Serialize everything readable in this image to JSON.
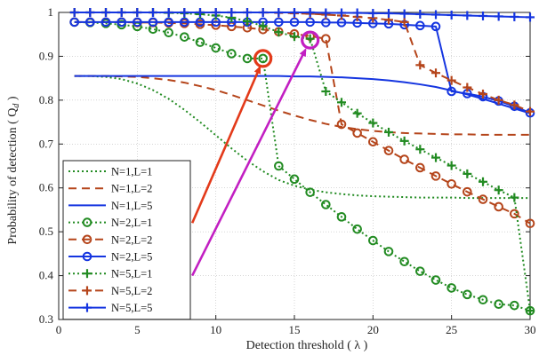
{
  "chart_data": {
    "type": "line",
    "xlabel": "Detection threshold ( λ )",
    "ylabel": "Probability of detection ( Q",
    "ylabel_sub": "d",
    "ylabel_end": " )",
    "xlim": [
      0,
      30
    ],
    "ylim": [
      0.3,
      1.0
    ],
    "xticks": [
      0,
      5,
      10,
      15,
      20,
      25,
      30
    ],
    "yticks": [
      0.3,
      0.4,
      0.5,
      0.6,
      0.7,
      0.8,
      0.9,
      1
    ],
    "grid": true,
    "legend_position": "bottom-left",
    "series": [
      {
        "name": "N=1,L=1",
        "color": "#228B22",
        "dash": "2,3",
        "marker": "none",
        "width": 2,
        "x": [
          1,
          2,
          3,
          4,
          5,
          6,
          7,
          8,
          9,
          10,
          11,
          12,
          13,
          14,
          15,
          16,
          17,
          18,
          19,
          20,
          21,
          22,
          23,
          24,
          25,
          26,
          27,
          28,
          29,
          30
        ],
        "y": [
          0.855,
          0.855,
          0.853,
          0.848,
          0.838,
          0.823,
          0.803,
          0.778,
          0.75,
          0.72,
          0.69,
          0.662,
          0.638,
          0.618,
          0.605,
          0.596,
          0.59,
          0.586,
          0.583,
          0.581,
          0.58,
          0.579,
          0.578,
          0.578,
          0.578,
          0.577,
          0.577,
          0.577,
          0.577,
          0.577
        ]
      },
      {
        "name": "N=1,L=2",
        "color": "#B5451B",
        "dash": "9,6",
        "marker": "none",
        "width": 2,
        "x": [
          1,
          2,
          3,
          4,
          5,
          6,
          7,
          8,
          9,
          10,
          11,
          12,
          13,
          14,
          15,
          16,
          17,
          18,
          19,
          20,
          21,
          22,
          23,
          24,
          25,
          26,
          27,
          28,
          29,
          30
        ],
        "y": [
          0.855,
          0.855,
          0.855,
          0.854,
          0.853,
          0.85,
          0.846,
          0.84,
          0.832,
          0.823,
          0.812,
          0.8,
          0.788,
          0.776,
          0.765,
          0.755,
          0.746,
          0.739,
          0.734,
          0.73,
          0.727,
          0.725,
          0.724,
          0.723,
          0.722,
          0.722,
          0.721,
          0.721,
          0.721,
          0.721
        ]
      },
      {
        "name": "N=1,L=5",
        "color": "#1535E0",
        "dash": "",
        "marker": "none",
        "width": 2,
        "x": [
          1,
          2,
          3,
          4,
          5,
          6,
          7,
          8,
          9,
          10,
          11,
          12,
          13,
          14,
          15,
          16,
          17,
          18,
          19,
          20,
          21,
          22,
          23,
          24,
          25,
          26,
          27,
          28,
          29,
          30
        ],
        "y": [
          0.855,
          0.855,
          0.855,
          0.855,
          0.855,
          0.855,
          0.855,
          0.855,
          0.855,
          0.855,
          0.855,
          0.855,
          0.855,
          0.855,
          0.854,
          0.854,
          0.853,
          0.852,
          0.85,
          0.848,
          0.845,
          0.841,
          0.836,
          0.83,
          0.822,
          0.813,
          0.803,
          0.792,
          0.781,
          0.77
        ]
      },
      {
        "name": "N=2,L=1",
        "color": "#228B22",
        "dash": "2,3",
        "marker": "circle",
        "width": 2,
        "x": [
          1,
          2,
          3,
          4,
          5,
          6,
          7,
          8,
          9,
          10,
          11,
          12,
          13,
          14,
          15,
          16,
          17,
          18,
          19,
          20,
          21,
          22,
          23,
          24,
          25,
          26,
          27,
          28,
          29,
          30
        ],
        "y": [
          0.978,
          0.977,
          0.975,
          0.972,
          0.968,
          0.962,
          0.954,
          0.944,
          0.932,
          0.919,
          0.906,
          0.895,
          0.895,
          0.65,
          0.62,
          0.59,
          0.562,
          0.534,
          0.506,
          0.48,
          0.455,
          0.432,
          0.41,
          0.39,
          0.372,
          0.357,
          0.345,
          0.335,
          0.332,
          0.32
        ]
      },
      {
        "name": "N=2,L=2",
        "color": "#B5451B",
        "dash": "9,6",
        "marker": "circle",
        "width": 2,
        "x": [
          1,
          2,
          3,
          4,
          5,
          6,
          7,
          8,
          9,
          10,
          11,
          12,
          13,
          14,
          15,
          16,
          17,
          18,
          19,
          20,
          21,
          22,
          23,
          24,
          25,
          26,
          27,
          28,
          29,
          30
        ],
        "y": [
          0.978,
          0.978,
          0.978,
          0.978,
          0.977,
          0.977,
          0.976,
          0.975,
          0.973,
          0.971,
          0.968,
          0.965,
          0.961,
          0.956,
          0.951,
          0.946,
          0.94,
          0.745,
          0.725,
          0.705,
          0.685,
          0.665,
          0.646,
          0.627,
          0.609,
          0.591,
          0.574,
          0.557,
          0.541,
          0.519
        ]
      },
      {
        "name": "N=2,L=5",
        "color": "#1535E0",
        "dash": "",
        "marker": "circle",
        "width": 2,
        "x": [
          1,
          2,
          3,
          4,
          5,
          6,
          7,
          8,
          9,
          10,
          11,
          12,
          13,
          14,
          15,
          16,
          17,
          18,
          19,
          20,
          21,
          22,
          23,
          24,
          25,
          26,
          27,
          28,
          29,
          30
        ],
        "y": [
          0.978,
          0.978,
          0.978,
          0.978,
          0.978,
          0.978,
          0.978,
          0.978,
          0.978,
          0.978,
          0.978,
          0.978,
          0.978,
          0.978,
          0.978,
          0.978,
          0.977,
          0.977,
          0.976,
          0.975,
          0.974,
          0.972,
          0.97,
          0.968,
          0.82,
          0.815,
          0.808,
          0.798,
          0.786,
          0.771
        ]
      },
      {
        "name": "N=5,L=1",
        "color": "#228B22",
        "dash": "2,3",
        "marker": "plus",
        "width": 2,
        "x": [
          1,
          2,
          3,
          4,
          5,
          6,
          7,
          8,
          9,
          10,
          11,
          12,
          13,
          14,
          15,
          16,
          17,
          18,
          19,
          20,
          21,
          22,
          23,
          24,
          25,
          26,
          27,
          28,
          29,
          30
        ],
        "y": [
          1.0,
          1.0,
          1.0,
          1.0,
          1.0,
          1.0,
          0.999,
          0.998,
          0.996,
          0.993,
          0.988,
          0.98,
          0.969,
          0.955,
          0.945,
          0.94,
          0.82,
          0.795,
          0.77,
          0.748,
          0.727,
          0.707,
          0.688,
          0.669,
          0.651,
          0.632,
          0.614,
          0.595,
          0.578,
          0.32
        ]
      },
      {
        "name": "N=5,L=2",
        "color": "#B5451B",
        "dash": "9,6",
        "marker": "plus",
        "width": 2,
        "x": [
          1,
          2,
          3,
          4,
          5,
          6,
          7,
          8,
          9,
          10,
          11,
          12,
          13,
          14,
          15,
          16,
          17,
          18,
          19,
          20,
          21,
          22,
          23,
          24,
          25,
          26,
          27,
          28,
          29,
          30
        ],
        "y": [
          1.0,
          1.0,
          1.0,
          1.0,
          1.0,
          1.0,
          1.0,
          1.0,
          1.0,
          1.0,
          1.0,
          1.0,
          1.0,
          0.999,
          0.998,
          0.997,
          0.995,
          0.993,
          0.99,
          0.987,
          0.983,
          0.978,
          0.88,
          0.862,
          0.845,
          0.829,
          0.814,
          0.8,
          0.789,
          0.774
        ]
      },
      {
        "name": "N=5,L=5",
        "color": "#1535E0",
        "dash": "",
        "marker": "plus",
        "width": 2,
        "x": [
          1,
          2,
          3,
          4,
          5,
          6,
          7,
          8,
          9,
          10,
          11,
          12,
          13,
          14,
          15,
          16,
          17,
          18,
          19,
          20,
          21,
          22,
          23,
          24,
          25,
          26,
          27,
          28,
          29,
          30
        ],
        "y": [
          1.0,
          1.0,
          1.0,
          1.0,
          1.0,
          1.0,
          1.0,
          1.0,
          1.0,
          1.0,
          1.0,
          1.0,
          1.0,
          1.0,
          1.0,
          1.0,
          0.999,
          0.999,
          0.999,
          0.998,
          0.998,
          0.997,
          0.996,
          0.995,
          0.994,
          0.993,
          0.992,
          0.991,
          0.99,
          0.989
        ]
      }
    ],
    "annotations": [
      {
        "kind": "circle",
        "x": 13,
        "y": 0.895,
        "color": "#E33A1A"
      },
      {
        "kind": "circle",
        "x": 16,
        "y": 0.937,
        "color": "#C21FC2"
      },
      {
        "kind": "arrow",
        "from": [
          8.5,
          0.52
        ],
        "to": [
          12.8,
          0.875
        ],
        "color": "#E33A1A"
      },
      {
        "kind": "arrow",
        "from": [
          8.5,
          0.4
        ],
        "to": [
          15.7,
          0.915
        ],
        "color": "#C21FC2"
      }
    ]
  }
}
